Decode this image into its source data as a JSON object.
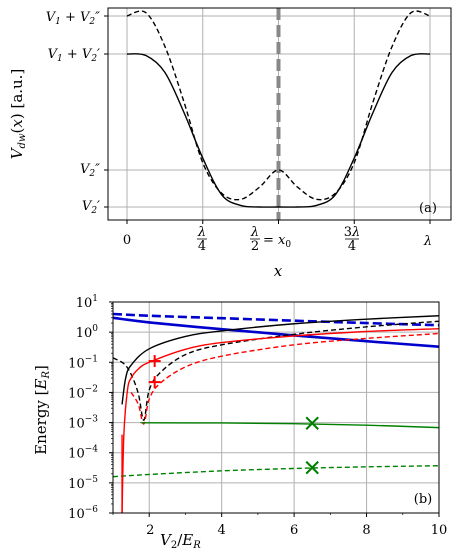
{
  "chart_data": [
    {
      "panel": "(a)",
      "type": "line",
      "xlabel": "x",
      "ylabel": "V_dw(x) [a.u.]",
      "x_ticks": [
        "0",
        "λ/4",
        "λ/2 = x0",
        "3λ/4",
        "λ"
      ],
      "y_ticks": [
        "V2'",
        "V2''",
        "V1 + V2'",
        "V1 + V2''"
      ],
      "grid": true,
      "annotations": [
        "vertical dashed line at x = λ/2 = x0"
      ],
      "series": [
        {
          "style": "solid",
          "color": "#000000",
          "x": [
            0,
            0.0625,
            0.125,
            0.1875,
            0.25,
            0.3125,
            0.375,
            0.4375,
            0.5,
            0.5625,
            0.625,
            0.6875,
            0.75,
            0.8125,
            0.875,
            0.9375,
            1.0
          ],
          "y": [
            "V1+V2'",
            0.99,
            0.88,
            0.62,
            0.32,
            0.08,
            0.01,
            0.0,
            "V2'",
            0.0,
            0.01,
            0.08,
            0.32,
            0.62,
            0.88,
            0.99,
            "V1+V2'"
          ]
        },
        {
          "style": "dashed",
          "color": "#000000",
          "x": [
            0,
            0.0625,
            0.125,
            0.1875,
            0.25,
            0.3125,
            0.375,
            0.4375,
            0.5,
            0.5625,
            0.625,
            0.6875,
            0.75,
            0.8125,
            0.875,
            0.9375,
            1.0
          ],
          "y": [
            "V1+V2''",
            1.27,
            1.05,
            0.69,
            0.29,
            0.09,
            0.05,
            0.13,
            "V2''",
            0.13,
            0.05,
            0.09,
            0.29,
            0.69,
            1.05,
            1.27,
            "V1+V2''"
          ]
        }
      ]
    },
    {
      "panel": "(b)",
      "type": "line",
      "xlabel": "V2/E_R",
      "ylabel": "Energy [E_R]",
      "y_scale": "log",
      "xlim": [
        1,
        10
      ],
      "ylim": [
        1e-06,
        10
      ],
      "x_ticks": [
        "2",
        "4",
        "6",
        "8",
        "10"
      ],
      "y_ticks": [
        "10^-6",
        "10^-5",
        "10^-4",
        "10^-3",
        "10^-2",
        "10^-1",
        "10^0",
        "10^1"
      ],
      "grid": true,
      "series": [
        {
          "color": "#0000cc",
          "style": "solid",
          "x": [
            1,
            2,
            4,
            6,
            8,
            10
          ],
          "y": [
            3.0,
            2.1,
            1.25,
            0.78,
            0.5,
            0.33
          ]
        },
        {
          "color": "#0000cc",
          "style": "dashed",
          "x": [
            1,
            2,
            4,
            6,
            8,
            10
          ],
          "y": [
            4.0,
            3.5,
            2.9,
            2.4,
            2.0,
            1.7
          ]
        },
        {
          "color": "#000000",
          "style": "solid",
          "x": [
            1.25,
            1.35,
            1.5,
            2.0,
            3.0,
            4.0,
            6.0,
            8.0,
            10.0
          ],
          "y": [
            0.004,
            0.03,
            0.08,
            0.28,
            0.72,
            1.1,
            1.9,
            2.7,
            3.5
          ]
        },
        {
          "color": "#000000",
          "style": "dashed",
          "x": [
            1,
            1.3,
            1.5,
            1.7,
            1.85,
            2.0,
            2.3,
            3.0,
            4.0,
            6.0,
            8.0,
            10.0
          ],
          "y": [
            0.14,
            0.09,
            0.04,
            0.009,
            0.0012,
            0.012,
            0.045,
            0.18,
            0.38,
            0.85,
            1.5,
            2.3
          ]
        },
        {
          "color": "#ff0000",
          "style": "solid",
          "x": [
            1.25,
            1.3,
            1.4,
            1.5,
            1.7,
            2.0,
            3.0,
            4.0,
            6.0,
            8.0,
            10.0
          ],
          "y": [
            1e-06,
            0.0004,
            0.012,
            0.03,
            0.06,
            0.1,
            0.27,
            0.45,
            0.75,
            1.05,
            1.3
          ]
        },
        {
          "color": "#ff0000",
          "style": "dashed",
          "x": [
            1.5,
            1.7,
            1.85,
            2.0,
            2.3,
            3.0,
            4.0,
            6.0,
            8.0,
            10.0
          ],
          "y": [
            0.01,
            0.004,
            0.0009,
            0.006,
            0.02,
            0.07,
            0.16,
            0.38,
            0.62,
            0.9
          ]
        },
        {
          "color": "#008000",
          "style": "solid",
          "x": [
            1.8,
            2,
            4,
            6,
            8,
            10
          ],
          "y": [
            0.001,
            0.00098,
            0.00097,
            0.00092,
            0.00082,
            0.00068
          ]
        },
        {
          "color": "#008000",
          "style": "dashed",
          "x": [
            1,
            2,
            4,
            6,
            8,
            10
          ],
          "y": [
            1.6e-05,
            1.9e-05,
            2.5e-05,
            3e-05,
            3.4e-05,
            3.7e-05
          ]
        }
      ],
      "markers": [
        {
          "symbol": "+",
          "color": "#ff0000",
          "x": 2.15,
          "y": 0.11
        },
        {
          "symbol": "+",
          "color": "#ff0000",
          "x": 2.15,
          "y": 0.022
        },
        {
          "symbol": "x",
          "color": "#008000",
          "x": 6.5,
          "y": 0.00095
        },
        {
          "symbol": "x",
          "color": "#008000",
          "x": 6.5,
          "y": 3.2e-05
        }
      ]
    }
  ]
}
